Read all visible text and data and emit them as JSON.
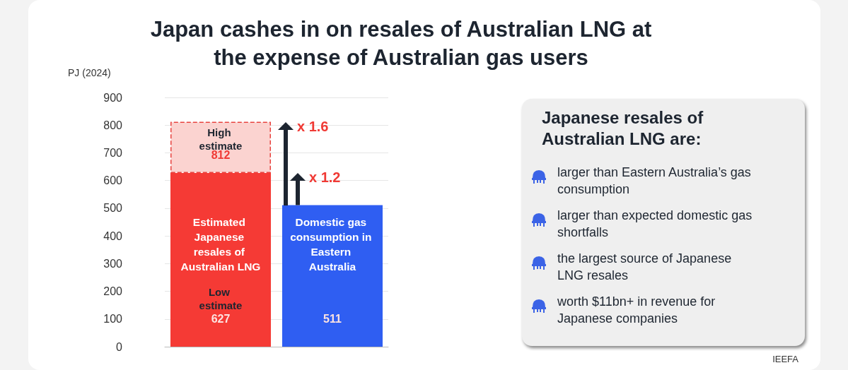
{
  "chart_data": {
    "type": "bar",
    "title": "Japan cashes in on resales of Australian LNG at the expense of Australian gas users",
    "ylabel": "PJ (2024)",
    "categories": [
      "Estimated Japanese resales of Australian LNG",
      "Domestic gas consumption in Eastern Australia"
    ],
    "stacked": true,
    "series": [
      {
        "colors": [
          "#f53a35",
          "#2f5ef2"
        ],
        "values": [
          627,
          511
        ],
        "value_labels": [
          "627",
          "511"
        ]
      },
      {
        "color": "#fbd3d0",
        "values": [
          185,
          null
        ]
      }
    ],
    "totals": [
      "812",
      null
    ],
    "ylim": [
      0,
      900
    ],
    "yticks": [
      0,
      100,
      200,
      300,
      400,
      500,
      600,
      700,
      800,
      900
    ],
    "grid": "y",
    "annotations": [
      "High estimate",
      "Low estimate",
      "x 1.6",
      "x 1.2",
      "Japanese resales of Australian LNG are:",
      "larger than Eastern Australia’s gas consumption",
      "larger than expected domestic gas shortfalls",
      "the largest source of Japanese LNG resales",
      "worth $11bn+ in revenue for Japanese companies",
      "IEEFA"
    ]
  }
}
